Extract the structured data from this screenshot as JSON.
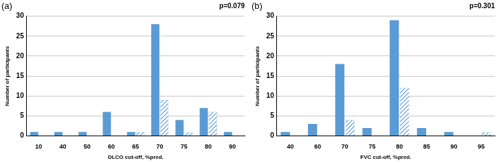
{
  "chart_data": [
    {
      "type": "bar",
      "title": "(a)",
      "annotation": "p=0.079",
      "x_label": "DLCO cut-off, %pred.",
      "y_label": "Number of participants",
      "categories": [
        "10",
        "40",
        "50",
        "60",
        "65",
        "70",
        "75",
        "80",
        "90"
      ],
      "series": [
        {
          "color": "#5b9bd5",
          "line_style": "solid",
          "values": [
            1,
            1,
            1,
            6,
            1,
            28,
            4,
            7,
            1
          ]
        },
        {
          "color": "#5b9bd5",
          "line_style": "hatched",
          "values": [
            0,
            0,
            0,
            0,
            1,
            9,
            1,
            6,
            0
          ]
        }
      ],
      "ylim": [
        0,
        30
      ],
      "yticks": [
        0,
        5,
        10,
        15,
        20,
        25,
        30
      ],
      "grid": true
    },
    {
      "type": "bar",
      "title": "(b)",
      "annotation": "p=0.301",
      "x_label": "FVC cut-off, %pred.",
      "y_label": "Number of participants",
      "categories": [
        "40",
        "60",
        "70",
        "75",
        "80",
        "85",
        "90",
        "95"
      ],
      "series": [
        {
          "color": "#5b9bd5",
          "line_style": "solid",
          "values": [
            1,
            3,
            18,
            2,
            29,
            2,
            1,
            0
          ]
        },
        {
          "color": "#5b9bd5",
          "line_style": "hatched",
          "values": [
            0,
            0,
            4,
            0,
            12,
            0,
            0,
            1
          ]
        }
      ],
      "ylim": [
        0,
        30
      ],
      "yticks": [
        0,
        5,
        10,
        15,
        20,
        25,
        30
      ],
      "grid": true
    }
  ]
}
